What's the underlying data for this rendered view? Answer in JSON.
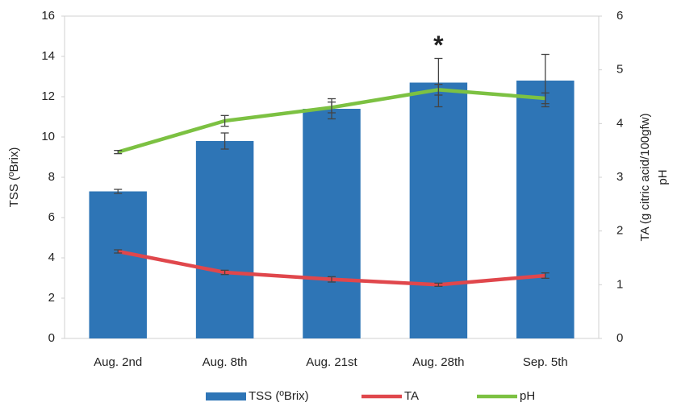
{
  "chart_data": {
    "type": "bar",
    "categories": [
      "Aug. 2nd",
      "Aug. 8th",
      "Aug. 21st",
      "Aug. 28th",
      "Sep. 5th"
    ],
    "series": [
      {
        "name": "TSS (ºBrix)",
        "color": "#2e75b6",
        "type": "bar",
        "values": [
          7.3,
          9.8,
          11.4,
          12.7,
          12.8
        ],
        "errors": [
          0.1,
          0.4,
          0.5,
          1.2,
          1.3
        ]
      },
      {
        "name": "TA",
        "color": "#e0474c",
        "type": "line",
        "axis": "y2",
        "values": [
          1.62,
          1.23,
          1.1,
          1.0,
          1.17
        ],
        "errors": [
          0.03,
          0.04,
          0.05,
          0.03,
          0.05
        ]
      },
      {
        "name": "pH",
        "color": "#7cc142",
        "type": "line",
        "axis": "y2",
        "values": [
          3.47,
          4.05,
          4.3,
          4.63,
          4.47
        ],
        "errors": [
          0.03,
          0.1,
          0.1,
          0.1,
          0.1
        ]
      }
    ],
    "ylabel": "TSS (ºBrix)",
    "y2labels": [
      "TA (g citric acid/100gfw)",
      "pH"
    ],
    "ylim": [
      0,
      16
    ],
    "yticks": [
      0,
      2,
      4,
      6,
      8,
      10,
      12,
      14,
      16
    ],
    "y2lim": [
      0,
      6
    ],
    "y2ticks": [
      0,
      1,
      2,
      3,
      4,
      5,
      6
    ],
    "annotations": [
      {
        "text": "*",
        "category": 3
      }
    ],
    "grid": false,
    "legend": "bottom"
  }
}
